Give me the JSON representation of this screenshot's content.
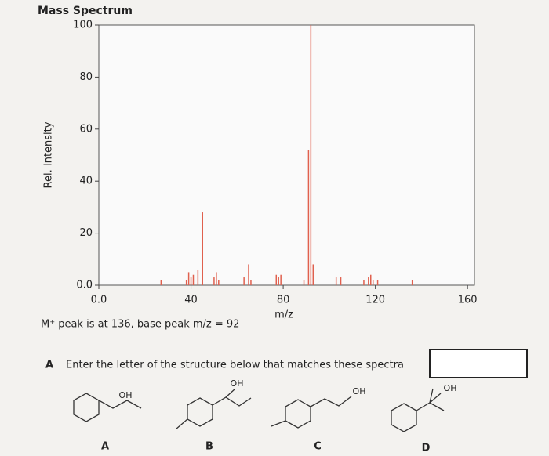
{
  "chart_data": {
    "type": "bar",
    "title": "Mass Spectrum",
    "y_label": "Rel. Intensity",
    "x_label": "m/z",
    "x": [
      27,
      38,
      39,
      40,
      41,
      43,
      45,
      50,
      51,
      52,
      63,
      65,
      66,
      77,
      78,
      79,
      89,
      91,
      92,
      93,
      103,
      105,
      115,
      117,
      118,
      119,
      121,
      136
    ],
    "values": [
      2,
      2,
      5,
      3,
      4,
      6,
      28,
      3,
      5,
      2,
      3,
      8,
      2,
      4,
      3,
      4,
      2,
      52,
      100,
      8,
      3,
      3,
      2,
      3,
      4,
      2,
      2,
      2
    ],
    "color": "#e0604e",
    "xlim": [
      0,
      163
    ],
    "xticks": [
      {
        "value": 0,
        "label": "0.0"
      },
      40,
      80,
      120,
      160
    ],
    "ylim": [
      0,
      100
    ],
    "yticks": [
      {
        "value": 0,
        "label": "0.0"
      },
      20,
      40,
      60,
      80,
      100
    ],
    "grid": false
  },
  "note": "M⁺ peak is at 136, base peak m/z = 92",
  "question": {
    "number": "A",
    "text": "Enter the letter of the structure below that matches these spectra"
  },
  "structures": [
    {
      "label": "A",
      "group": "OH"
    },
    {
      "label": "B",
      "group": "OH"
    },
    {
      "label": "C",
      "group": "OH"
    },
    {
      "label": "D",
      "group": "OH"
    }
  ]
}
